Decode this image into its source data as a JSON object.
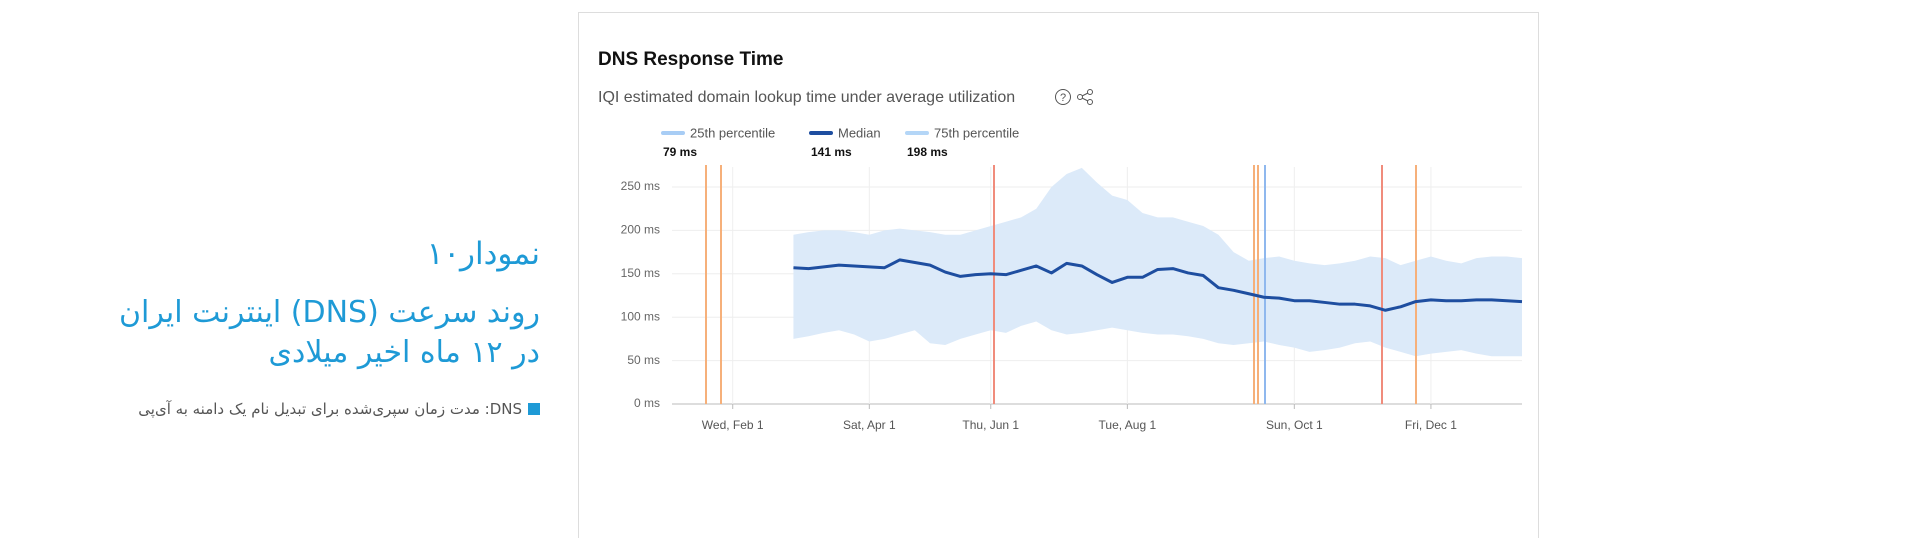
{
  "article": {
    "figure_label": "نمودار۱۰",
    "figure_title": [
      "روند سرعت (DNS) اینترنت ایران",
      "در ۱۲ ماه اخیر میلادی"
    ],
    "caption": "DNS: مدت زمان سپری‌شده برای تبدیل نام یک دامنه به آی‌پی"
  },
  "chart_data": {
    "type": "line",
    "title": "DNS Response Time",
    "subtitle": "IQI estimated domain lookup time under average utilization",
    "categories": [
      null,
      null,
      null,
      null,
      "Wed, Feb 1",
      null,
      null,
      null,
      null,
      null,
      null,
      null,
      null,
      "Sat, Apr 1",
      null,
      null,
      null,
      null,
      null,
      null,
      null,
      "Thu, Jun 1",
      null,
      null,
      null,
      null,
      null,
      null,
      null,
      null,
      "Tue, Aug 1",
      null,
      null,
      null,
      null,
      null,
      null,
      null,
      null,
      null,
      null,
      "Sun, Oct 1",
      null,
      null,
      null,
      null,
      null,
      null,
      null,
      null,
      "Fri, Dec 1",
      null,
      null,
      null,
      null,
      null,
      null
    ],
    "series": [
      {
        "name": "25th percentile",
        "summary": "79 ms",
        "color": "#a8cdf5",
        "values": [
          null,
          null,
          null,
          null,
          null,
          null,
          null,
          null,
          75,
          78,
          82,
          85,
          80,
          72,
          75,
          80,
          85,
          70,
          68,
          75,
          80,
          85,
          82,
          90,
          95,
          85,
          80,
          82,
          85,
          88,
          85,
          82,
          80,
          80,
          78,
          75,
          70,
          68,
          70,
          72,
          68,
          65,
          60,
          62,
          65,
          70,
          72,
          65,
          60,
          55,
          58,
          60,
          62,
          58,
          55,
          55,
          55
        ]
      },
      {
        "name": "Median",
        "summary": "141 ms",
        "color": "#1e4ea0",
        "values": [
          null,
          null,
          null,
          null,
          null,
          null,
          null,
          null,
          157,
          156,
          158,
          160,
          159,
          158,
          157,
          166,
          163,
          160,
          152,
          147,
          149,
          150,
          149,
          154,
          159,
          151,
          162,
          159,
          149,
          140,
          146,
          146,
          155,
          156,
          151,
          148,
          134,
          131,
          127,
          123,
          122,
          119,
          119,
          117,
          115,
          115,
          113,
          108,
          112,
          118,
          120,
          119,
          119,
          120,
          120,
          119,
          118
        ]
      },
      {
        "name": "75th percentile",
        "summary": "198 ms",
        "color": "#b4d6f7",
        "values": [
          null,
          null,
          null,
          null,
          null,
          null,
          null,
          null,
          195,
          198,
          200,
          200,
          198,
          195,
          200,
          202,
          200,
          198,
          195,
          195,
          200,
          205,
          210,
          215,
          225,
          250,
          265,
          272,
          255,
          240,
          235,
          220,
          215,
          215,
          210,
          205,
          195,
          175,
          165,
          168,
          170,
          165,
          162,
          160,
          162,
          165,
          170,
          168,
          160,
          165,
          170,
          165,
          162,
          168,
          170,
          170,
          168
        ]
      }
    ],
    "band_color": "#dceaf9",
    "ylim": [
      0,
      250
    ],
    "yticks": [
      {
        "value": 0,
        "label": "0 ms"
      },
      {
        "value": 50,
        "label": "50 ms"
      },
      {
        "value": 100,
        "label": "100 ms"
      },
      {
        "value": 150,
        "label": "150 ms"
      },
      {
        "value": 200,
        "label": "200 ms"
      },
      {
        "value": 250,
        "label": "250 ms"
      }
    ],
    "grid": true
  }
}
